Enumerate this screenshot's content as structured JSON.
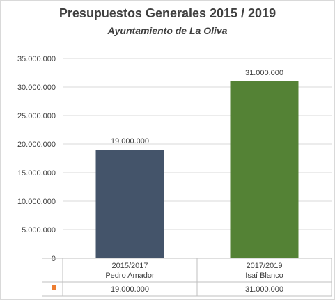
{
  "chart_data": {
    "type": "bar",
    "title": "Presupuestos Generales 2015 / 2019",
    "subtitle": "Ayuntamiento de La Oliva",
    "categories": [
      {
        "line1": "2015/2017",
        "line2": "Pedro Amador"
      },
      {
        "line1": "2017/2019",
        "line2": "Isaí Blanco"
      }
    ],
    "values": [
      19000000,
      31000000
    ],
    "value_labels": [
      "19.000.000",
      "31.000.000"
    ],
    "bar_colors": [
      "#44546a",
      "#548235"
    ],
    "ylim": [
      0,
      35000000
    ],
    "y_ticks": [
      {
        "value": 0,
        "label": "0"
      },
      {
        "value": 5000000,
        "label": "5.000.000"
      },
      {
        "value": 10000000,
        "label": "10.000.000"
      },
      {
        "value": 15000000,
        "label": "15.000.000"
      },
      {
        "value": 20000000,
        "label": "20.000.000"
      },
      {
        "value": 25000000,
        "label": "25.000.000"
      },
      {
        "value": 30000000,
        "label": "30.000.000"
      },
      {
        "value": 35000000,
        "label": "35.000.000"
      }
    ],
    "grid": true,
    "data_table": true,
    "legend_key_color": "#ed7d31",
    "legend_key_icon": "orange-square-icon"
  }
}
